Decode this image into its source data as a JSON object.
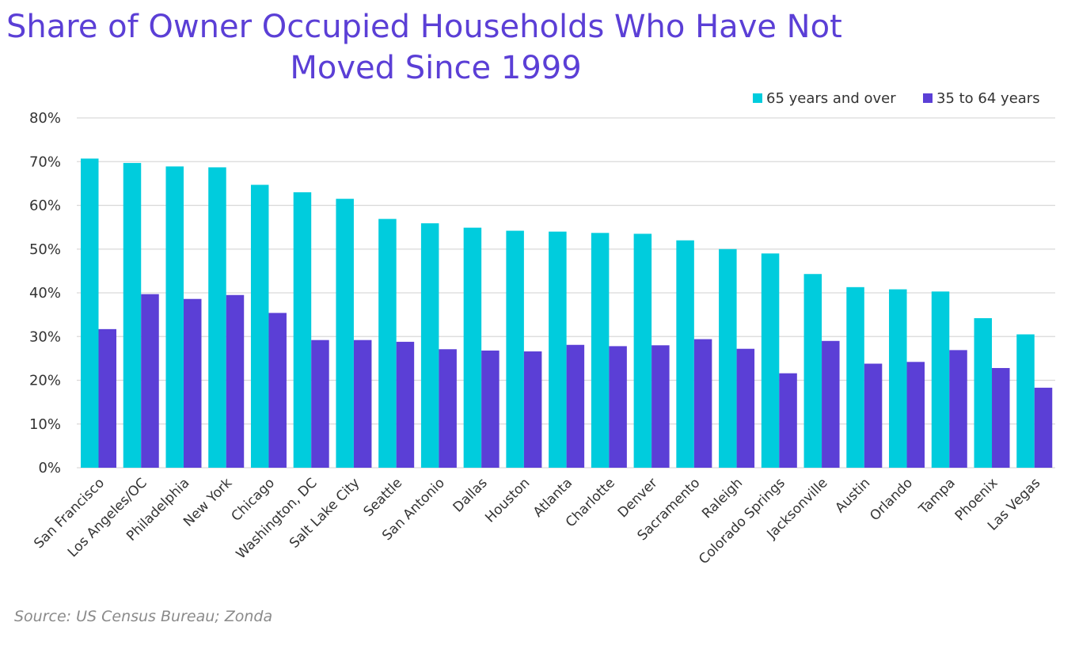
{
  "title_line1": "Share of Owner Occupied Households Who Have Not",
  "title_line2": "Moved Since 1999",
  "source": "Source: US Census Bureau; Zonda",
  "colors": {
    "series_65": "#00ccdd",
    "series_35": "#5b3fd6",
    "title": "#5b3fd6",
    "grid": "#d9d9d9"
  },
  "chart_data": {
    "type": "bar",
    "title": "Share of Owner Occupied Households Who Have Not Moved Since 1999",
    "xlabel": "",
    "ylabel": "",
    "ylim": [
      0,
      80
    ],
    "yticks": [
      "0%",
      "10%",
      "20%",
      "30%",
      "40%",
      "50%",
      "60%",
      "70%",
      "80%"
    ],
    "grid": true,
    "legend_position": "top-right",
    "categories": [
      "San Francisco",
      "Los Angeles/OC",
      "Philadelphia",
      "New York",
      "Chicago",
      "Washington, DC",
      "Salt Lake City",
      "Seattle",
      "San Antonio",
      "Dallas",
      "Houston",
      "Atlanta",
      "Charlotte",
      "Denver",
      "Sacramento",
      "Raleigh",
      "Colorado Springs",
      "Jacksonville",
      "Austin",
      "Orlando",
      "Tampa",
      "Phoenix",
      "Las Vegas"
    ],
    "series": [
      {
        "name": "65 years and over",
        "values": [
          70.7,
          69.7,
          68.9,
          68.7,
          64.7,
          63.0,
          61.5,
          56.9,
          55.9,
          54.9,
          54.2,
          54.0,
          53.7,
          53.5,
          52.0,
          50.0,
          49.0,
          44.3,
          41.3,
          40.8,
          40.3,
          34.2,
          30.5
        ]
      },
      {
        "name": "35 to 64 years",
        "values": [
          31.7,
          39.7,
          38.6,
          39.5,
          35.4,
          29.2,
          29.2,
          28.8,
          27.1,
          26.8,
          26.6,
          28.1,
          27.8,
          28.0,
          29.4,
          27.2,
          21.6,
          29.0,
          23.8,
          24.2,
          26.9,
          22.8,
          18.3
        ]
      }
    ]
  }
}
